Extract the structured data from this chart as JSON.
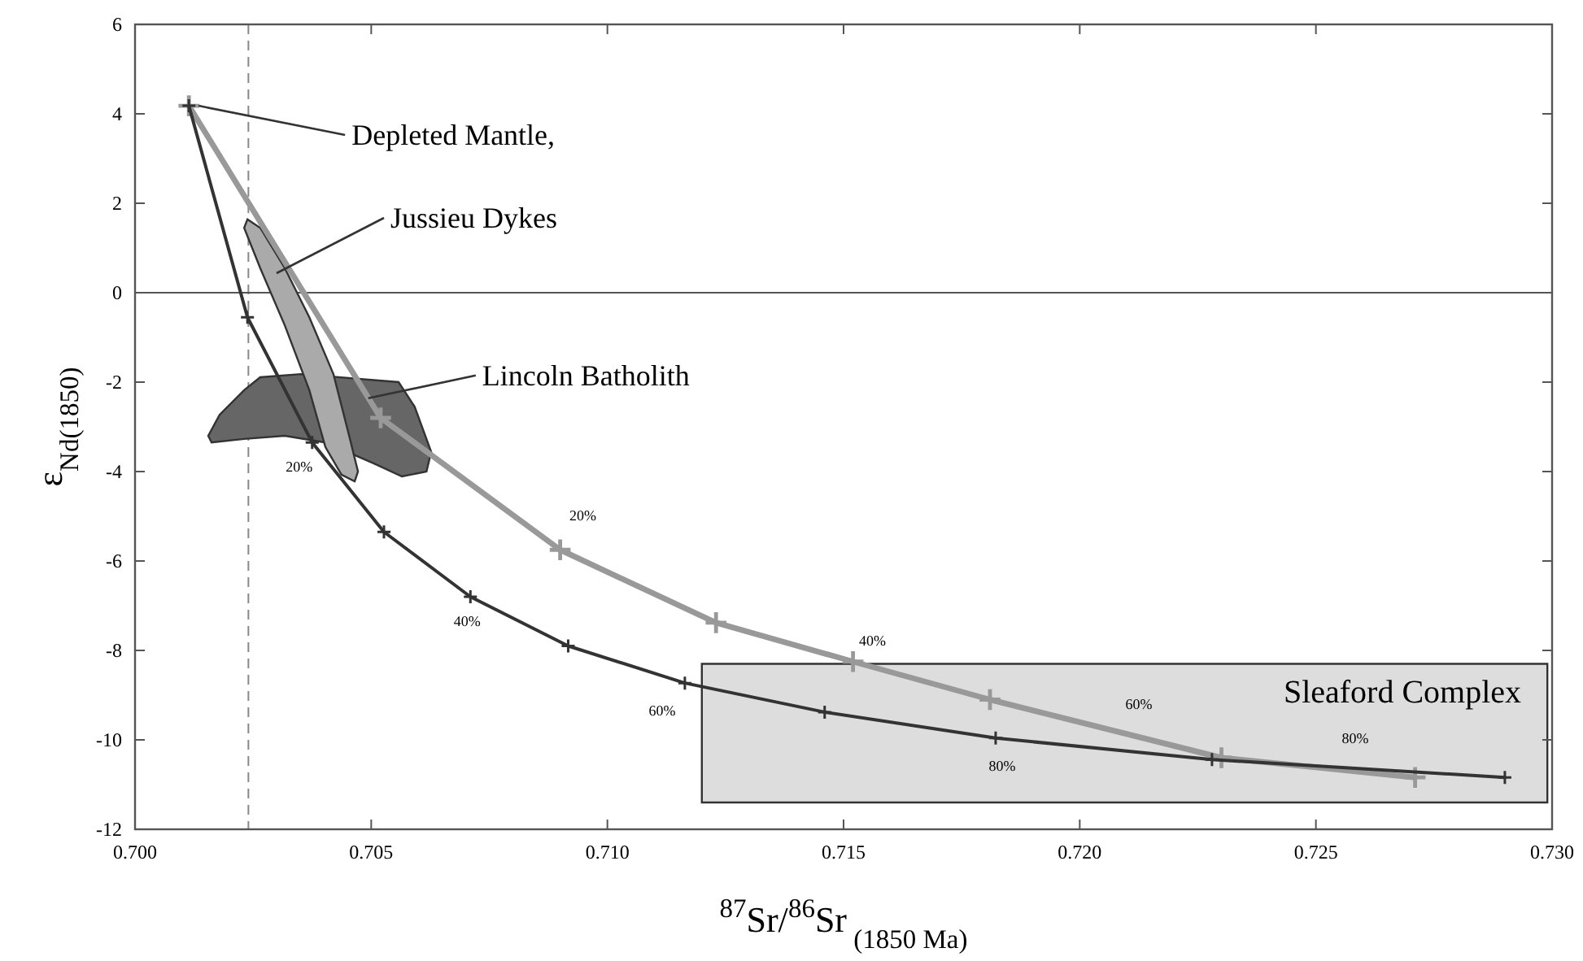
{
  "chart_data": {
    "type": "line",
    "xlabel": "$^{87}$Sr/$^{86}$Sr$_{ (1850 Ma)}$",
    "ylabel": "ε$_{Nd(1850)}$",
    "xlim": [
      0.7,
      0.73
    ],
    "ylim": [
      -12,
      6
    ],
    "xticks": [
      {
        "value": 0.7,
        "label": "0.700"
      },
      {
        "value": 0.705,
        "label": "0.705"
      },
      {
        "value": 0.71,
        "label": "0.710"
      },
      {
        "value": 0.715,
        "label": "0.715"
      },
      {
        "value": 0.72,
        "label": "0.720"
      },
      {
        "value": 0.725,
        "label": "0.725"
      },
      {
        "value": 0.73,
        "label": "0.730"
      }
    ],
    "yticks": [
      -12,
      -10,
      -8,
      -6,
      -4,
      -2,
      0,
      2,
      4,
      6
    ],
    "grid": false,
    "line_style": "solid",
    "ref_lines": [
      {
        "axis": "x",
        "value": 0.7024,
        "line_style": "dashed",
        "color": "#888888"
      },
      {
        "axis": "y",
        "value": 0,
        "line_style": "solid",
        "color": "#555555"
      }
    ],
    "series": [
      {
        "type": "area",
        "color": "#dddddd",
        "x": [
          0.712,
          0.7299,
          0.7299,
          0.712
        ],
        "values": [
          -8.3,
          -8.3,
          -11.4,
          -11.4
        ]
      },
      {
        "type": "area",
        "color": "#666666",
        "x": [
          0.70155,
          0.70179,
          0.70231,
          0.70265,
          0.70351,
          0.70558,
          0.70592,
          0.70627,
          0.70617,
          0.70565,
          0.70506,
          0.70403,
          0.70317,
          0.70231,
          0.70162
        ],
        "values": [
          -3.2,
          -2.73,
          -2.18,
          -1.89,
          -1.82,
          -2.0,
          -2.55,
          -3.56,
          -4.0,
          -4.11,
          -3.82,
          -3.35,
          -3.2,
          -3.27,
          -3.35
        ]
      },
      {
        "type": "area",
        "color": "#aaaaaa",
        "x": [
          0.70238,
          0.70265,
          0.70317,
          0.70369,
          0.7042,
          0.70455,
          0.70472,
          0.70465,
          0.70437,
          0.70403,
          0.70369,
          0.70317,
          0.70265,
          0.70231
        ],
        "values": [
          1.64,
          1.45,
          0.55,
          -0.55,
          -1.82,
          -3.27,
          -4.0,
          -4.22,
          -4.07,
          -3.45,
          -2.18,
          -0.73,
          0.55,
          1.45
        ]
      },
      {
        "color": "#999999",
        "marker": "cross",
        "x": [
          0.70114,
          0.7052,
          0.709,
          0.7123,
          0.7152,
          0.7181,
          0.723,
          0.7271
        ],
        "values": [
          4.18,
          -2.8,
          -5.75,
          -7.38,
          -8.25,
          -9.1,
          -10.4,
          -10.84
        ]
      },
      {
        "color": "#333333",
        "marker": "cross",
        "x": [
          0.70114,
          0.70238,
          0.70375,
          0.70527,
          0.7071,
          0.70917,
          0.71164,
          0.7146,
          0.71822,
          0.7228,
          0.729
        ],
        "values": [
          4.18,
          -0.55,
          -3.35,
          -5.35,
          -6.8,
          -7.9,
          -8.73,
          -9.38,
          -9.96,
          -10.44,
          -10.84
        ]
      }
    ],
    "annotations": [
      {
        "text": "Depleted Mantle,",
        "x": 0.70114,
        "y": 4.18
      },
      "Jussieu Dykes",
      {
        "text": "Lincoln Batholith",
        "x": 0.70494,
        "y": -2.36
      },
      "Sleaford Complex",
      {
        "text": "20%",
        "x": 0.70375,
        "y": -3.35
      },
      {
        "text": "40%",
        "x": 0.7071,
        "y": -6.8
      },
      {
        "text": "60%",
        "x": 0.71164,
        "y": -8.73
      },
      {
        "text": "80%",
        "x": 0.71822,
        "y": -9.96
      },
      {
        "text": "20%",
        "x": 0.709,
        "y": -5.75
      },
      {
        "text": "40%",
        "x": 0.7152,
        "y": -8.25
      },
      "60%",
      "80%"
    ]
  }
}
